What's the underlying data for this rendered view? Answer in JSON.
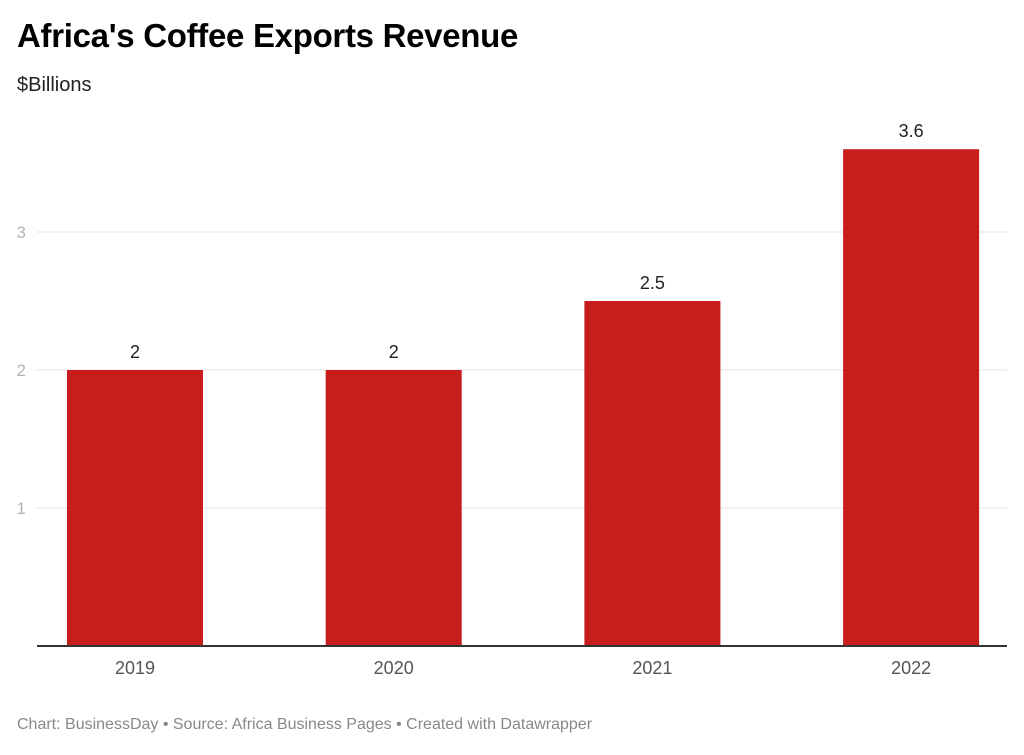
{
  "chart_data": {
    "type": "bar",
    "title": "Africa's Coffee Exports Revenue",
    "subtitle": "$Billions",
    "xlabel": "",
    "ylabel": "$Billions",
    "categories": [
      "2019",
      "2020",
      "2021",
      "2022"
    ],
    "values": [
      2,
      2,
      2.5,
      3.6
    ],
    "value_labels": [
      "2",
      "2",
      "2.5",
      "3.6"
    ],
    "ylim": [
      0,
      3.6
    ],
    "yticks": [
      1,
      2,
      3
    ],
    "grid": true,
    "bar_color": "#c81d1d",
    "legend": "none"
  },
  "footer": {
    "text": "Chart: BusinessDay • Source: Africa Business Pages • Created with Datawrapper"
  }
}
